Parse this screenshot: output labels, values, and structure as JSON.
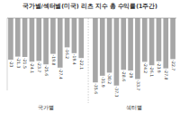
{
  "chart_data": {
    "type": "bar",
    "title": "국가별/섹터별(미국) 리츠 지수 총 수익률(1주간)",
    "annotations": [
      "국가별",
      "섹터별"
    ],
    "categories": [
      null,
      null,
      null,
      null,
      null,
      null,
      null,
      null,
      null,
      null,
      null,
      null,
      null,
      null,
      null,
      null,
      null,
      null,
      null,
      null,
      null,
      null,
      null
    ],
    "values": [
      -23.0,
      -21.3,
      -21.5,
      -24.1,
      -23.7,
      -25.6,
      -19.8,
      -27.4,
      -16.2,
      -19.4,
      -22.1,
      -35.6,
      -31.9,
      -30.2,
      -37.3,
      -28.6,
      -29.0,
      -33.7,
      -24.2,
      -26.1,
      -23.9,
      -27.8,
      -22.7
    ],
    "color": "#a6a6a6",
    "ylim": [
      -40,
      0
    ],
    "yticks": [
      0
    ],
    "data_labels": true,
    "tick_labels": false
  }
}
